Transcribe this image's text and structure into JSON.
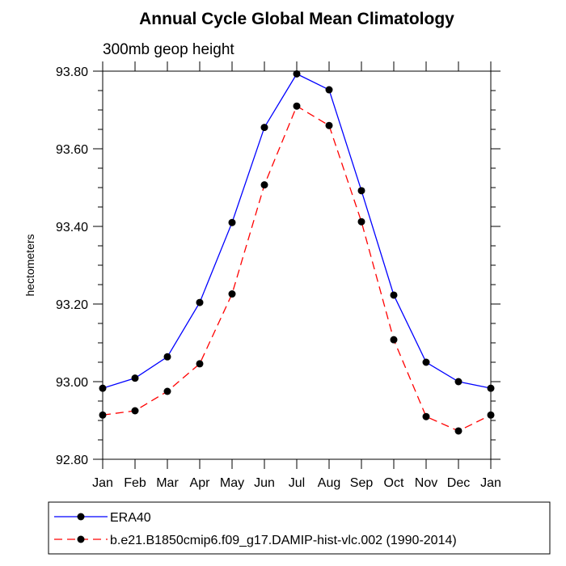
{
  "chart_data": {
    "type": "line",
    "title": "Annual Cycle Global Mean Climatology",
    "subtitle": "300mb geop height",
    "xlabel": "",
    "ylabel": "hectometers",
    "categories": [
      "Jan",
      "Feb",
      "Mar",
      "Apr",
      "May",
      "Jun",
      "Jul",
      "Aug",
      "Sep",
      "Oct",
      "Nov",
      "Dec",
      "Jan"
    ],
    "ylim": [
      92.8,
      93.8
    ],
    "yticks": [
      92.8,
      93.0,
      93.2,
      93.4,
      93.6,
      93.8
    ],
    "ytick_labels": [
      "92.80",
      "93.00",
      "93.20",
      "93.40",
      "93.60",
      "93.80"
    ],
    "legend_position": "bottom",
    "series": [
      {
        "name": "ERA40",
        "color": "#0000ff",
        "dash": "solid",
        "values": [
          92.983,
          93.009,
          93.064,
          93.204,
          93.41,
          93.655,
          93.793,
          93.752,
          93.492,
          93.223,
          93.05,
          93.0,
          92.983
        ]
      },
      {
        "name": "b.e21.B1850cmip6.f09_g17.DAMIP-hist-vlc.002 (1990-2014)",
        "color": "#ff0000",
        "dash": "dashed",
        "values": [
          92.914,
          92.925,
          92.975,
          93.046,
          93.226,
          93.507,
          93.71,
          93.66,
          93.412,
          93.108,
          92.91,
          92.873,
          92.914
        ]
      }
    ]
  }
}
